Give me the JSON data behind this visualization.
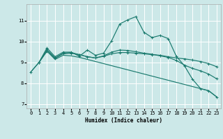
{
  "xlabel": "Humidex (Indice chaleur)",
  "xlim": [
    -0.5,
    23.5
  ],
  "ylim": [
    6.8,
    11.8
  ],
  "xticks": [
    0,
    1,
    2,
    3,
    4,
    5,
    6,
    7,
    8,
    9,
    10,
    11,
    12,
    13,
    14,
    15,
    16,
    17,
    18,
    19,
    20,
    21,
    22,
    23
  ],
  "yticks": [
    7,
    8,
    9,
    10,
    11
  ],
  "bg_color": "#cce8e8",
  "line_color": "#1a7a6e",
  "grid_color": "#ffffff",
  "line1_x": [
    0,
    1,
    2,
    3,
    4,
    5,
    6,
    7,
    8,
    9,
    10,
    11,
    12,
    13,
    14,
    15,
    16,
    17,
    18,
    19,
    20,
    21,
    22,
    23
  ],
  "line1_y": [
    8.55,
    9.0,
    9.7,
    9.28,
    9.5,
    9.5,
    9.3,
    9.6,
    9.35,
    9.45,
    10.05,
    10.85,
    11.05,
    11.2,
    10.45,
    10.2,
    10.3,
    10.15,
    9.3,
    8.85,
    8.2,
    7.75,
    7.65,
    7.35
  ],
  "line2_x": [
    1,
    2,
    3,
    4,
    5,
    6,
    7,
    8,
    9,
    10,
    11,
    12,
    13,
    14,
    15,
    16,
    17,
    18,
    19,
    20,
    21,
    22,
    23
  ],
  "line2_y": [
    9.0,
    9.55,
    9.2,
    9.42,
    9.45,
    9.38,
    9.28,
    9.22,
    9.3,
    9.42,
    9.48,
    9.48,
    9.45,
    9.42,
    9.38,
    9.35,
    9.28,
    9.22,
    9.18,
    9.12,
    9.05,
    8.95,
    8.8
  ],
  "line3_x": [
    0,
    1,
    2,
    3,
    4,
    5,
    6,
    7,
    8,
    9,
    10,
    11,
    12,
    13,
    14,
    15,
    16,
    17,
    18,
    19,
    20,
    21,
    22,
    23
  ],
  "line3_y": [
    8.55,
    9.0,
    9.55,
    9.15,
    9.35,
    9.32,
    9.25,
    9.15,
    9.05,
    8.95,
    8.85,
    8.75,
    8.65,
    8.55,
    8.45,
    8.35,
    8.25,
    8.15,
    8.05,
    7.95,
    7.85,
    7.75,
    7.65,
    7.35
  ],
  "line4_x": [
    1,
    2,
    3,
    4,
    5,
    6,
    7,
    8,
    9,
    10,
    11,
    12,
    13,
    14,
    15,
    16,
    17,
    18,
    19,
    20,
    21,
    22,
    23
  ],
  "line4_y": [
    9.0,
    9.62,
    9.22,
    9.45,
    9.48,
    9.38,
    9.28,
    9.22,
    9.32,
    9.5,
    9.6,
    9.58,
    9.52,
    9.45,
    9.4,
    9.32,
    9.25,
    9.1,
    8.88,
    8.72,
    8.6,
    8.45,
    8.22
  ]
}
